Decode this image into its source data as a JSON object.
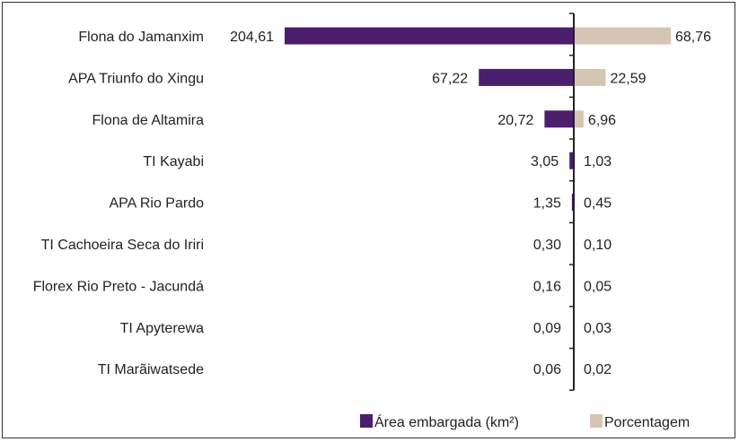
{
  "chart_data": {
    "type": "bar",
    "orientation": "horizontal-diverging",
    "categories": [
      "Flona do Jamanxim",
      "APA Triunfo do Xingu",
      "Flona de Altamira",
      "TI Kayabi",
      "APA Rio Pardo",
      "TI Cachoeira Seca do Iriri",
      "Florex Rio Preto - Jacundá",
      "TI Apyterewa",
      "TI Marãiwatsede"
    ],
    "series": [
      {
        "name": "Área embargada (km²)",
        "values": [
          204.61,
          67.22,
          20.72,
          3.05,
          1.35,
          0.3,
          0.16,
          0.09,
          0.06
        ],
        "labels": [
          "204,61",
          "67,22",
          "20,72",
          "3,05",
          "1,35",
          "0,30",
          "0,16",
          "0,09",
          "0,06"
        ],
        "color": "#4b1e6e",
        "side": "left"
      },
      {
        "name": "Porcentagem",
        "values": [
          68.76,
          22.59,
          6.96,
          1.03,
          0.45,
          0.1,
          0.05,
          0.03,
          0.02
        ],
        "labels": [
          "68,76",
          "22,59",
          "6,96",
          "1,03",
          "0,45",
          "0,10",
          "0,05",
          "0,03",
          "0,02"
        ],
        "color": "#d5c6b3",
        "side": "right"
      }
    ],
    "legend_position": "bottom-right",
    "grid": false,
    "title": "",
    "xlabel": "",
    "ylabel": ""
  }
}
